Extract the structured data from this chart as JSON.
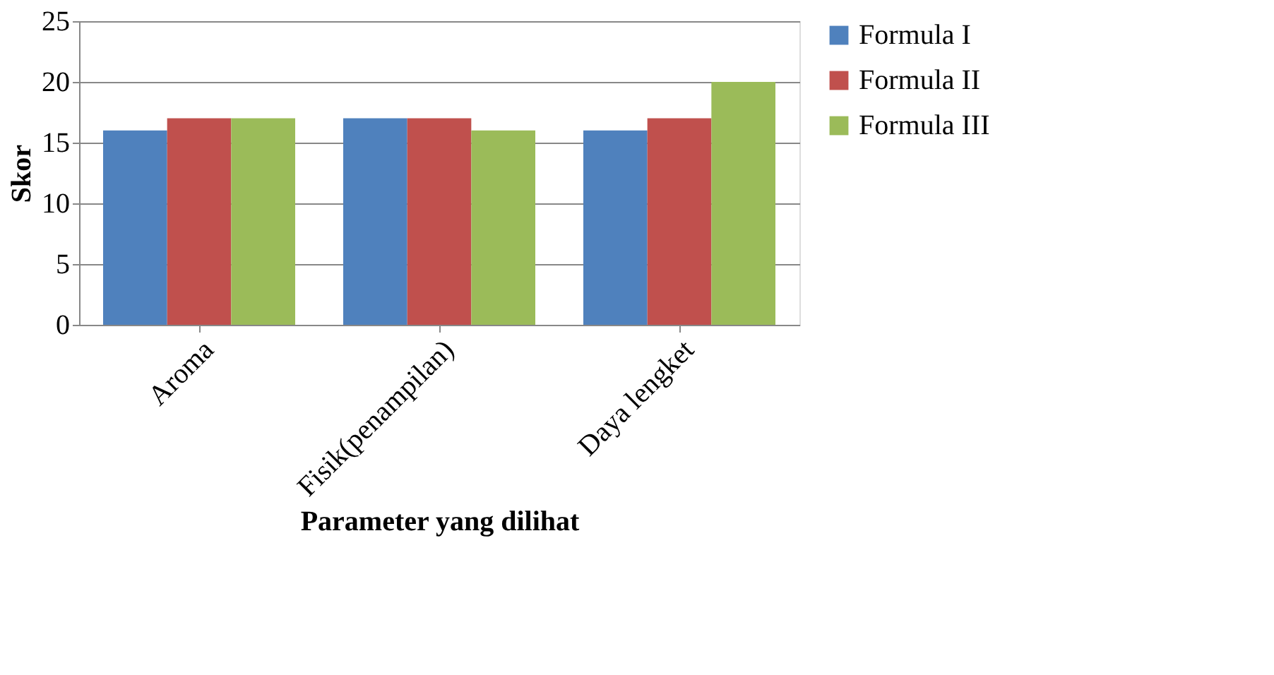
{
  "chart_data": {
    "type": "bar",
    "xlabel": "Parameter yang dilihat",
    "ylabel": "Skor",
    "categories": [
      "Aroma",
      "Fisik(penampilan)",
      "Daya lengket"
    ],
    "series": [
      {
        "name": "Formula I",
        "color": "#4f81bd",
        "values": [
          16,
          17,
          16
        ]
      },
      {
        "name": "Formula II",
        "color": "#c0504d",
        "values": [
          17,
          17,
          17
        ]
      },
      {
        "name": "Formula III",
        "color": "#9bbb59",
        "values": [
          17,
          16,
          20
        ]
      }
    ],
    "ylim": [
      0,
      25
    ],
    "yticks": [
      0,
      5,
      10,
      15,
      20,
      25
    ],
    "grid": "y",
    "legend": "right"
  }
}
